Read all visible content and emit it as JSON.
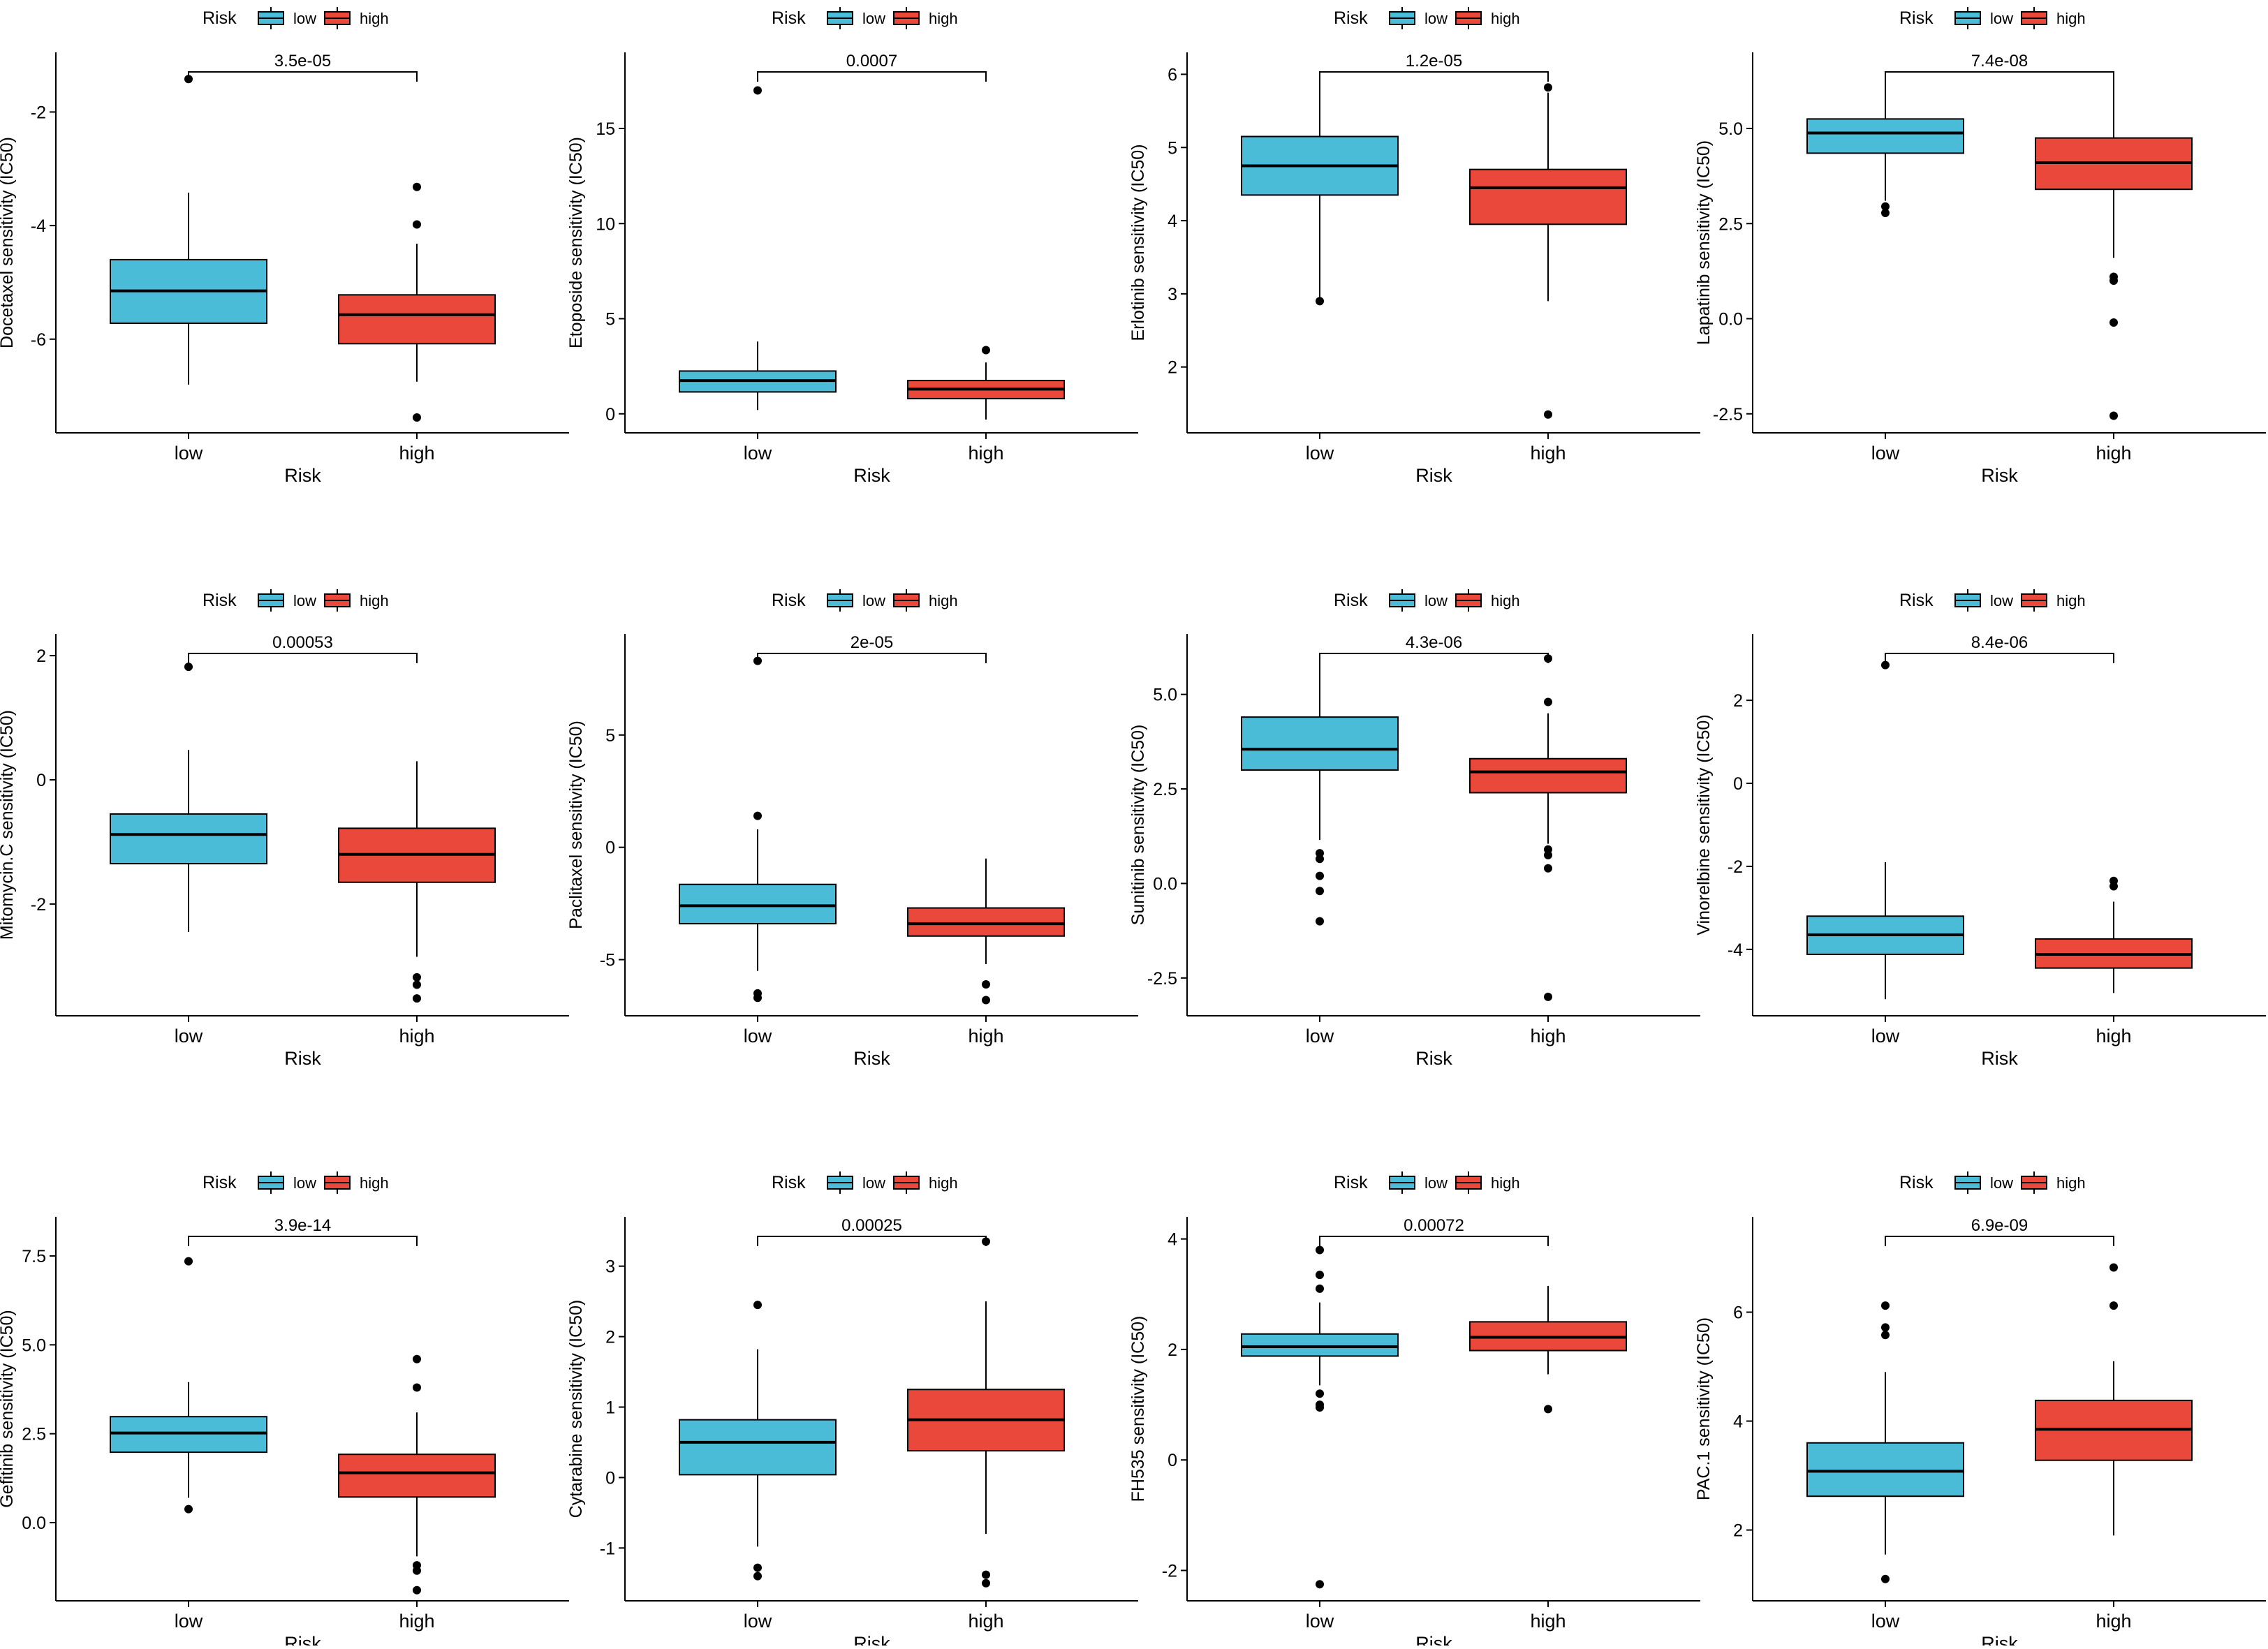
{
  "colors": {
    "low": "#4bbcd8",
    "high": "#e9483a",
    "axis": "#000000"
  },
  "legend": {
    "title": "Risk",
    "items": [
      "low",
      "high"
    ]
  },
  "chart_data": [
    {
      "type": "box",
      "title": "",
      "ylabel": "Docetaxel sensitivity (IC50)",
      "xlabel": "Risk",
      "categories": [
        "low",
        "high"
      ],
      "ylim": [
        -7.65,
        -0.95
      ],
      "yticks": [
        -2,
        -4,
        -6
      ],
      "ytick_labels": [
        "-2",
        "-4",
        "-6"
      ],
      "pvalue": "3.5e-05",
      "boxes": [
        {
          "group": "low",
          "q1": -5.72,
          "median": -5.15,
          "q3": -4.6,
          "whisker_low": -6.8,
          "whisker_high": -3.42,
          "outliers": [
            -1.42
          ]
        },
        {
          "group": "high",
          "q1": -6.08,
          "median": -5.57,
          "q3": -5.22,
          "whisker_low": -6.75,
          "whisker_high": -4.32,
          "outliers": [
            -3.32,
            -3.98,
            -7.38
          ]
        }
      ]
    },
    {
      "type": "box",
      "title": "",
      "ylabel": "Etoposide sensitivity (IC50)",
      "xlabel": "Risk",
      "categories": [
        "low",
        "high"
      ],
      "ylim": [
        -1.0,
        19.0
      ],
      "yticks": [
        15,
        10,
        5,
        0
      ],
      "ytick_labels": [
        "15",
        "10",
        "5",
        "0"
      ],
      "pvalue": "0.0007",
      "boxes": [
        {
          "group": "low",
          "q1": 1.15,
          "median": 1.75,
          "q3": 2.25,
          "whisker_low": 0.2,
          "whisker_high": 3.8,
          "outliers": [
            17.0
          ]
        },
        {
          "group": "high",
          "q1": 0.8,
          "median": 1.3,
          "q3": 1.75,
          "whisker_low": -0.3,
          "whisker_high": 2.7,
          "outliers": [
            3.35
          ]
        }
      ]
    },
    {
      "type": "box",
      "title": "",
      "ylabel": "Erlotinib sensitivity (IC50)",
      "xlabel": "Risk",
      "categories": [
        "low",
        "high"
      ],
      "ylim": [
        1.1,
        6.3
      ],
      "yticks": [
        6,
        5,
        4,
        3,
        2
      ],
      "ytick_labels": [
        "6",
        "5",
        "4",
        "3",
        "2"
      ],
      "pvalue": "1.2e-05",
      "boxes": [
        {
          "group": "low",
          "q1": 4.35,
          "median": 4.75,
          "q3": 5.15,
          "whisker_low": 2.92,
          "whisker_high": 5.98,
          "outliers": [
            2.9
          ]
        },
        {
          "group": "high",
          "q1": 3.95,
          "median": 4.45,
          "q3": 4.7,
          "whisker_low": 2.9,
          "whisker_high": 5.75,
          "outliers": [
            5.82,
            1.35
          ]
        }
      ]
    },
    {
      "type": "box",
      "title": "",
      "ylabel": "Lapatinib sensitivity (IC50)",
      "xlabel": "Risk",
      "categories": [
        "low",
        "high"
      ],
      "ylim": [
        -3.0,
        7.0
      ],
      "yticks": [
        5.0,
        2.5,
        0.0,
        -2.5
      ],
      "ytick_labels": [
        "5.0",
        "2.5",
        "0.0",
        "-2.5"
      ],
      "pvalue": "7.4e-08",
      "boxes": [
        {
          "group": "low",
          "q1": 4.35,
          "median": 4.88,
          "q3": 5.25,
          "whisker_low": 3.1,
          "whisker_high": 6.45,
          "outliers": [
            2.95,
            2.78
          ]
        },
        {
          "group": "high",
          "q1": 3.4,
          "median": 4.1,
          "q3": 4.75,
          "whisker_low": 1.6,
          "whisker_high": 6.45,
          "outliers": [
            1.1,
            1.0,
            -0.1,
            -2.55
          ]
        }
      ]
    },
    {
      "type": "box",
      "title": "",
      "ylabel": "Mitomycin.C sensitivity (IC50)",
      "xlabel": "Risk",
      "categories": [
        "low",
        "high"
      ],
      "ylim": [
        -3.8,
        2.35
      ],
      "yticks": [
        2,
        0,
        -2
      ],
      "ytick_labels": [
        "2",
        "0",
        "-2"
      ],
      "pvalue": "0.00053",
      "boxes": [
        {
          "group": "low",
          "q1": -1.35,
          "median": -0.88,
          "q3": -0.55,
          "whisker_low": -2.45,
          "whisker_high": 0.48,
          "outliers": [
            1.82
          ]
        },
        {
          "group": "high",
          "q1": -1.65,
          "median": -1.2,
          "q3": -0.78,
          "whisker_low": -2.85,
          "whisker_high": 0.3,
          "outliers": [
            -3.18,
            -3.3,
            -3.52
          ]
        }
      ]
    },
    {
      "type": "box",
      "title": "",
      "ylabel": "Paclitaxel sensitivity (IC50)",
      "xlabel": "Risk",
      "categories": [
        "low",
        "high"
      ],
      "ylim": [
        -7.5,
        9.5
      ],
      "yticks": [
        5,
        0,
        -5
      ],
      "ytick_labels": [
        "5",
        "0",
        "-5"
      ],
      "pvalue": "2e-05",
      "boxes": [
        {
          "group": "low",
          "q1": -3.4,
          "median": -2.6,
          "q3": -1.65,
          "whisker_low": -5.5,
          "whisker_high": 0.8,
          "outliers": [
            1.4,
            8.3,
            -6.5,
            -6.7
          ]
        },
        {
          "group": "high",
          "q1": -3.95,
          "median": -3.4,
          "q3": -2.7,
          "whisker_low": -5.2,
          "whisker_high": -0.5,
          "outliers": [
            -6.1,
            -6.8
          ]
        }
      ]
    },
    {
      "type": "box",
      "title": "",
      "ylabel": "Sunitinib sensitivity (IC50)",
      "xlabel": "Risk",
      "categories": [
        "low",
        "high"
      ],
      "ylim": [
        -3.5,
        6.6
      ],
      "yticks": [
        5.0,
        2.5,
        0.0,
        -2.5
      ],
      "ytick_labels": [
        "5.0",
        "2.5",
        "0.0",
        "-2.5"
      ],
      "pvalue": "4.3e-06",
      "boxes": [
        {
          "group": "low",
          "q1": 3.0,
          "median": 3.55,
          "q3": 4.4,
          "whisker_low": 1.15,
          "whisker_high": 5.95,
          "outliers": [
            0.8,
            0.65,
            0.2,
            -0.2,
            -1.0
          ]
        },
        {
          "group": "high",
          "q1": 2.4,
          "median": 2.95,
          "q3": 3.3,
          "whisker_low": 1.05,
          "whisker_high": 4.5,
          "outliers": [
            5.95,
            4.8,
            0.9,
            0.75,
            0.4,
            -3.0
          ]
        }
      ]
    },
    {
      "type": "box",
      "title": "",
      "ylabel": "Vinorelbine sensitivity (IC50)",
      "xlabel": "Risk",
      "categories": [
        "low",
        "high"
      ],
      "ylim": [
        -5.6,
        3.6
      ],
      "yticks": [
        2,
        0,
        -2,
        -4
      ],
      "ytick_labels": [
        "2",
        "0",
        "-2",
        "-4"
      ],
      "pvalue": "8.4e-06",
      "boxes": [
        {
          "group": "low",
          "q1": -4.12,
          "median": -3.65,
          "q3": -3.2,
          "whisker_low": -5.2,
          "whisker_high": -1.9,
          "outliers": [
            2.85
          ]
        },
        {
          "group": "high",
          "q1": -4.45,
          "median": -4.12,
          "q3": -3.75,
          "whisker_low": -5.05,
          "whisker_high": -2.85,
          "outliers": [
            -2.35,
            -2.48
          ]
        }
      ]
    },
    {
      "type": "box",
      "title": "",
      "ylabel": "Gefitinib sensitivity (IC50)",
      "xlabel": "Risk",
      "categories": [
        "low",
        "high"
      ],
      "ylim": [
        -2.2,
        8.6
      ],
      "yticks": [
        7.5,
        5.0,
        2.5,
        0.0
      ],
      "ytick_labels": [
        "7.5",
        "5.0",
        "2.5",
        "0.0"
      ],
      "pvalue": "3.9e-14",
      "boxes": [
        {
          "group": "low",
          "q1": 1.98,
          "median": 2.52,
          "q3": 2.98,
          "whisker_low": 0.7,
          "whisker_high": 3.95,
          "outliers": [
            7.35,
            0.38
          ]
        },
        {
          "group": "high",
          "q1": 0.72,
          "median": 1.4,
          "q3": 1.92,
          "whisker_low": -0.95,
          "whisker_high": 3.1,
          "outliers": [
            4.6,
            3.8,
            -1.2,
            -1.35,
            -1.9
          ]
        }
      ]
    },
    {
      "type": "box",
      "title": "",
      "ylabel": "Cytarabine sensitivity (IC50)",
      "xlabel": "Risk",
      "categories": [
        "low",
        "high"
      ],
      "ylim": [
        -1.75,
        3.7
      ],
      "yticks": [
        3,
        2,
        1,
        0,
        -1
      ],
      "ytick_labels": [
        "3",
        "2",
        "1",
        "0",
        "-1"
      ],
      "pvalue": "0.00025",
      "boxes": [
        {
          "group": "low",
          "q1": 0.04,
          "median": 0.5,
          "q3": 0.82,
          "whisker_low": -0.98,
          "whisker_high": 1.82,
          "outliers": [
            2.45,
            -1.28,
            -1.4
          ]
        },
        {
          "group": "high",
          "q1": 0.38,
          "median": 0.82,
          "q3": 1.25,
          "whisker_low": -0.8,
          "whisker_high": 2.5,
          "outliers": [
            3.35,
            -1.38,
            -1.5
          ]
        }
      ]
    },
    {
      "type": "box",
      "title": "",
      "ylabel": "FH535 sensitivity (IC50)",
      "xlabel": "Risk",
      "categories": [
        "low",
        "high"
      ],
      "ylim": [
        -2.55,
        4.4
      ],
      "yticks": [
        4,
        2,
        0,
        -2
      ],
      "ytick_labels": [
        "4",
        "2",
        "0",
        "-2"
      ],
      "pvalue": "0.00072",
      "boxes": [
        {
          "group": "low",
          "q1": 1.88,
          "median": 2.05,
          "q3": 2.28,
          "whisker_low": 1.35,
          "whisker_high": 2.85,
          "outliers": [
            3.8,
            3.35,
            3.1,
            1.2,
            1.0,
            0.95,
            -2.25
          ]
        },
        {
          "group": "high",
          "q1": 1.98,
          "median": 2.22,
          "q3": 2.5,
          "whisker_low": 1.55,
          "whisker_high": 3.15,
          "outliers": [
            0.92
          ]
        }
      ]
    },
    {
      "type": "box",
      "title": "",
      "ylabel": "PAC.1 sensitivity (IC50)",
      "xlabel": "Risk",
      "categories": [
        "low",
        "high"
      ],
      "ylim": [
        0.7,
        7.75
      ],
      "yticks": [
        6,
        4,
        2
      ],
      "ytick_labels": [
        "6",
        "4",
        "2"
      ],
      "pvalue": "6.9e-09",
      "boxes": [
        {
          "group": "low",
          "q1": 2.62,
          "median": 3.08,
          "q3": 3.6,
          "whisker_low": 1.55,
          "whisker_high": 4.9,
          "outliers": [
            6.12,
            5.72,
            5.58,
            1.1
          ]
        },
        {
          "group": "high",
          "q1": 3.28,
          "median": 3.85,
          "q3": 4.38,
          "whisker_low": 1.9,
          "whisker_high": 5.1,
          "outliers": [
            6.82,
            6.12
          ]
        }
      ]
    }
  ]
}
